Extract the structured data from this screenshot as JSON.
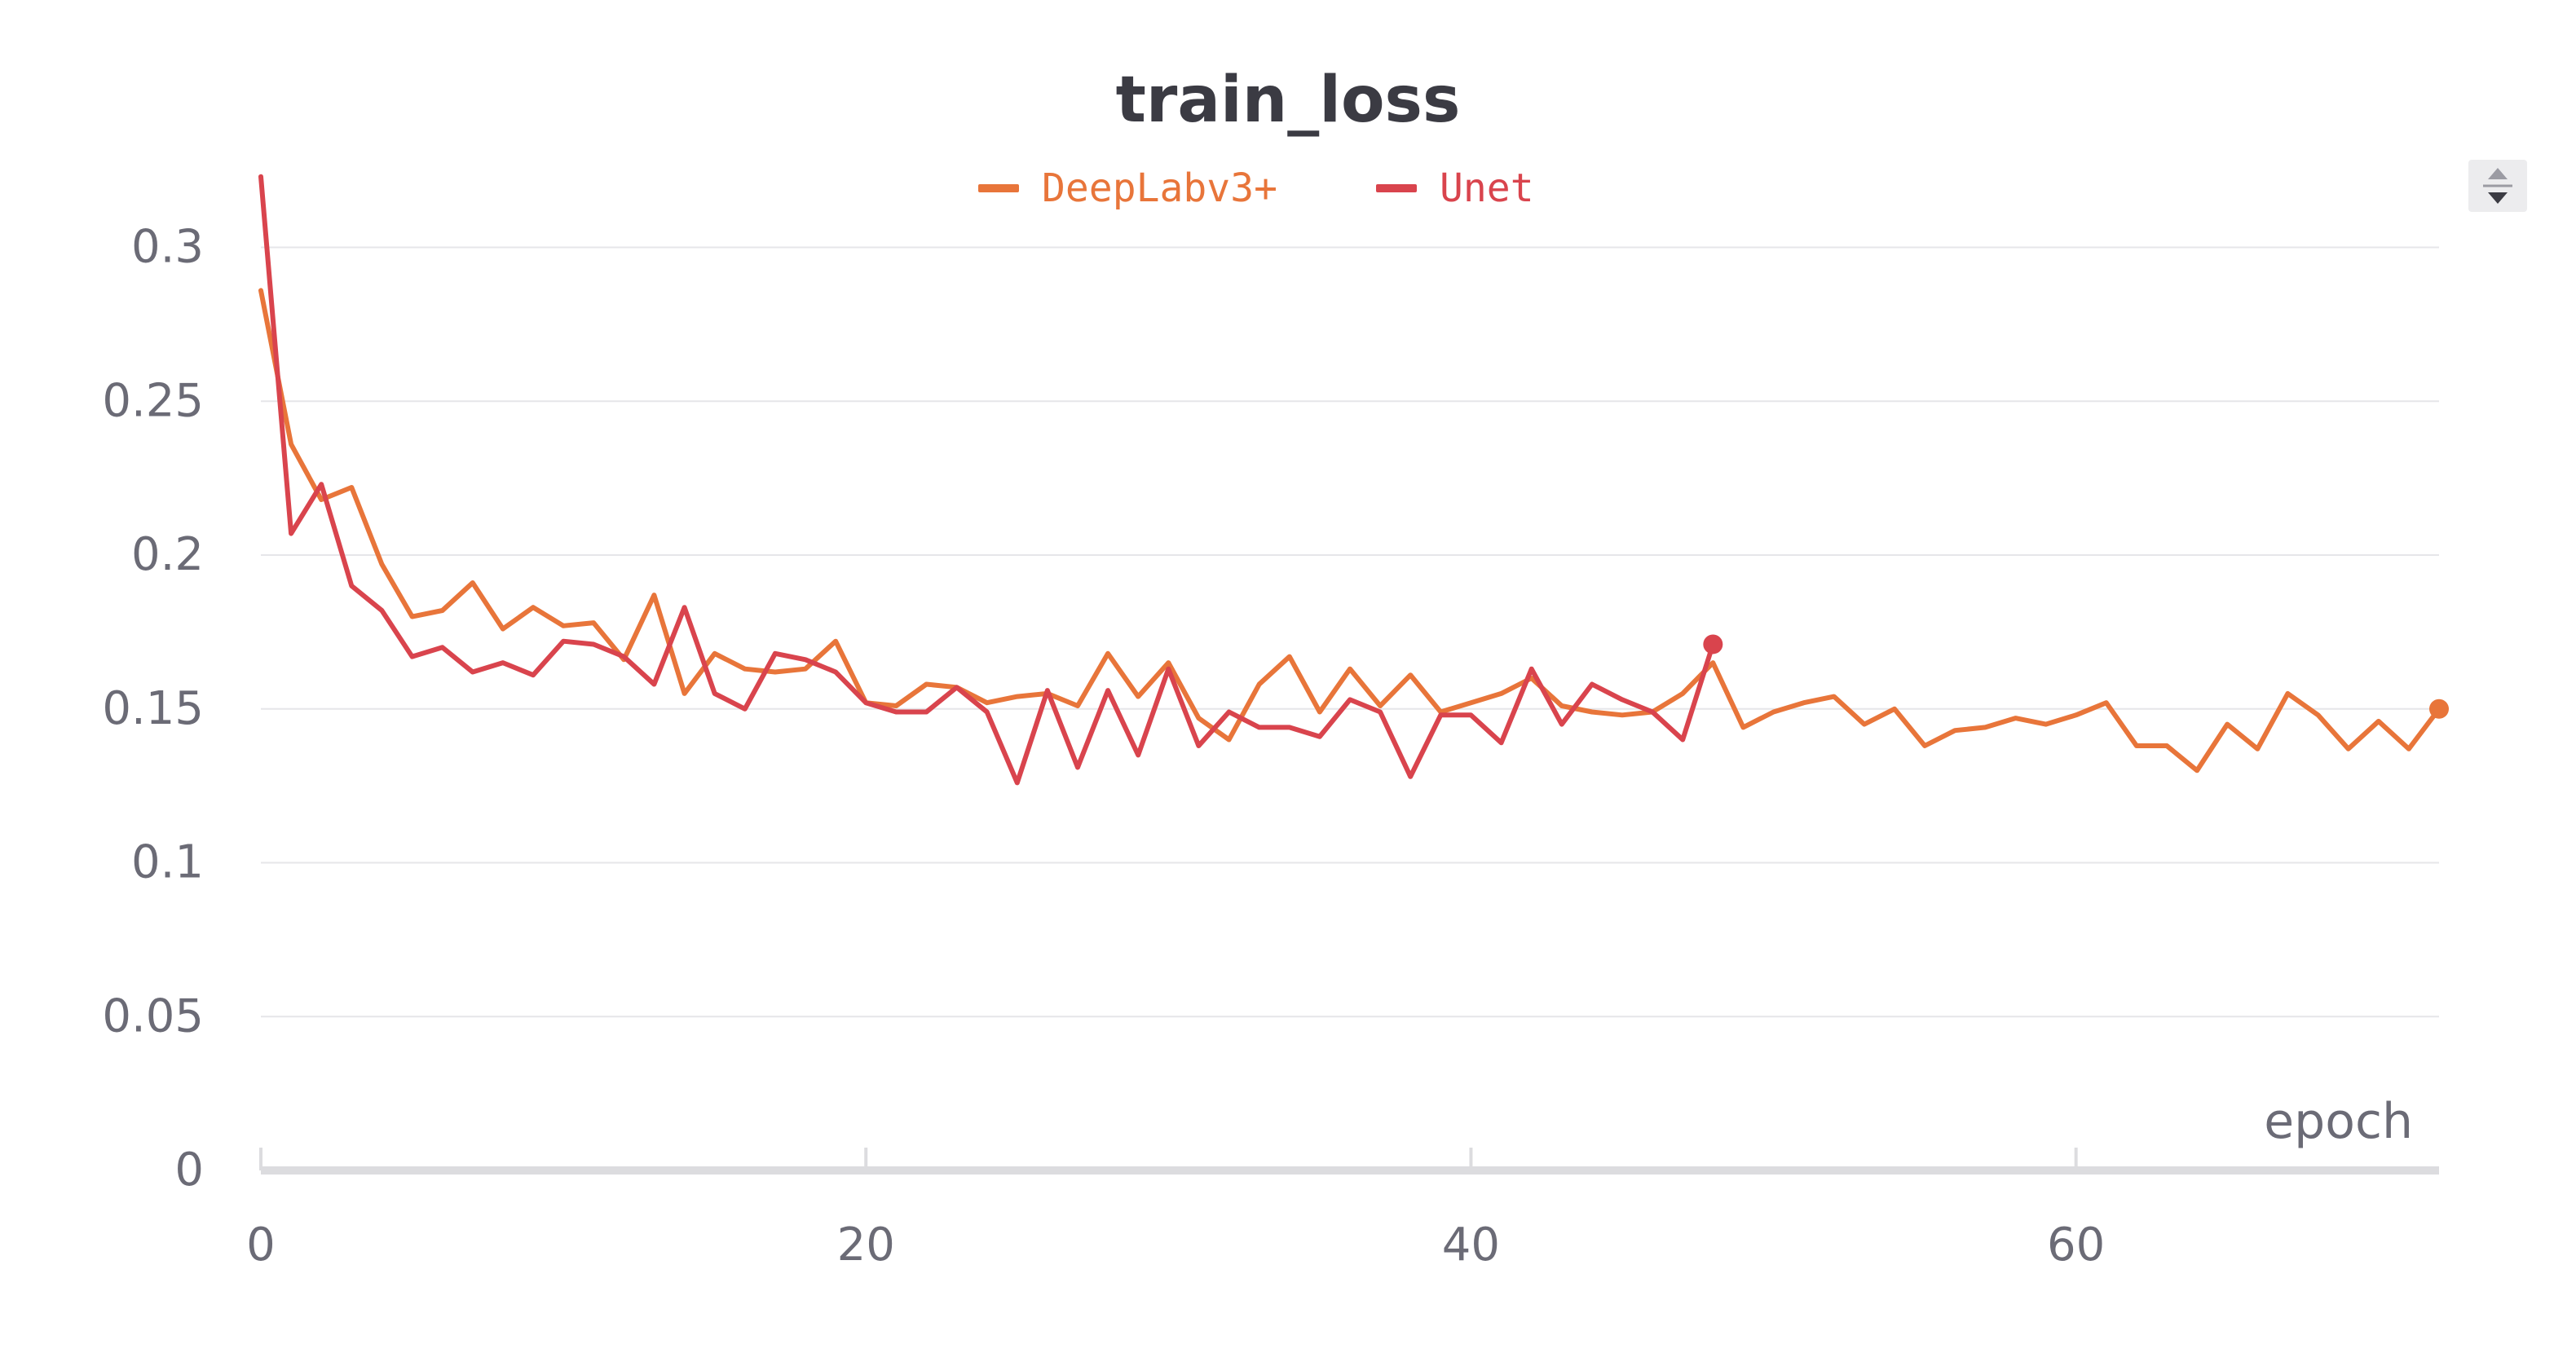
{
  "chart_data": {
    "type": "line",
    "title": "train_loss",
    "xlabel": "epoch",
    "ylabel": "",
    "xlim": [
      0,
      72
    ],
    "ylim": [
      0,
      0.32
    ],
    "x_ticks": [
      0,
      20,
      40,
      60
    ],
    "x_tick_labels": [
      "0",
      "20",
      "40",
      "60"
    ],
    "y_ticks": [
      0,
      0.05,
      0.1,
      0.15,
      0.2,
      0.25,
      0.3
    ],
    "y_tick_labels": [
      "0",
      "0.05",
      "0.1",
      "0.15",
      "0.2",
      "0.25",
      "0.3"
    ],
    "grid": "horizontal",
    "legend_position": "top-center",
    "series": [
      {
        "name": "DeepLabv3+",
        "color": "#e8753a",
        "x": [
          0,
          1,
          2,
          3,
          4,
          5,
          6,
          7,
          8,
          9,
          10,
          11,
          12,
          13,
          14,
          15,
          16,
          17,
          18,
          19,
          20,
          21,
          22,
          23,
          24,
          25,
          26,
          27,
          28,
          29,
          30,
          31,
          32,
          33,
          34,
          35,
          36,
          37,
          38,
          39,
          40,
          41,
          42,
          43,
          44,
          45,
          46,
          47,
          48,
          49,
          50,
          51,
          52,
          53,
          54,
          55,
          56,
          57,
          58,
          59,
          60,
          61,
          62,
          63,
          64,
          65,
          66,
          67,
          68,
          69,
          70,
          71,
          72
        ],
        "values": [
          0.286,
          0.236,
          0.218,
          0.222,
          0.197,
          0.18,
          0.182,
          0.191,
          0.176,
          0.183,
          0.177,
          0.178,
          0.166,
          0.187,
          0.155,
          0.168,
          0.163,
          0.162,
          0.163,
          0.172,
          0.152,
          0.151,
          0.158,
          0.157,
          0.152,
          0.154,
          0.155,
          0.151,
          0.168,
          0.154,
          0.165,
          0.147,
          0.14,
          0.158,
          0.167,
          0.149,
          0.163,
          0.151,
          0.161,
          0.149,
          0.152,
          0.155,
          0.16,
          0.151,
          0.149,
          0.148,
          0.149,
          0.155,
          0.165,
          0.144,
          0.149,
          0.152,
          0.154,
          0.145,
          0.15,
          0.138,
          0.143,
          0.144,
          0.147,
          0.145,
          0.148,
          0.152,
          0.138,
          0.138,
          0.13,
          0.145,
          0.137,
          0.155,
          0.148,
          0.137,
          0.146,
          0.137,
          0.15
        ]
      },
      {
        "name": "Unet",
        "color": "#d9444d",
        "x": [
          0,
          1,
          2,
          3,
          4,
          5,
          6,
          7,
          8,
          9,
          10,
          11,
          12,
          13,
          14,
          15,
          16,
          17,
          18,
          19,
          20,
          21,
          22,
          23,
          24,
          25,
          26,
          27,
          28,
          29,
          30,
          31,
          32,
          33,
          34,
          35,
          36,
          37,
          38,
          39,
          40,
          41,
          42,
          43,
          44,
          45,
          46,
          47,
          48
        ],
        "values": [
          0.323,
          0.207,
          0.223,
          0.19,
          0.182,
          0.167,
          0.17,
          0.162,
          0.165,
          0.161,
          0.172,
          0.171,
          0.167,
          0.158,
          0.183,
          0.155,
          0.15,
          0.168,
          0.166,
          0.162,
          0.152,
          0.149,
          0.149,
          0.157,
          0.149,
          0.126,
          0.156,
          0.131,
          0.156,
          0.135,
          0.163,
          0.138,
          0.149,
          0.144,
          0.144,
          0.141,
          0.153,
          0.149,
          0.128,
          0.148,
          0.148,
          0.139,
          0.163,
          0.145,
          0.158,
          0.153,
          0.149,
          0.14,
          0.171
        ]
      }
    ]
  }
}
